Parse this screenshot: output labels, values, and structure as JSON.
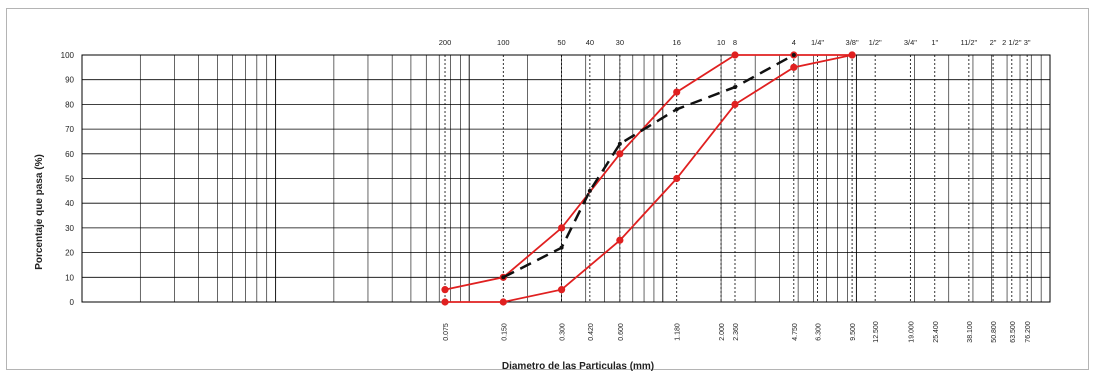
{
  "chart_data": {
    "type": "line",
    "title": "",
    "xlabel": "Diametro de las Particulas (mm)",
    "ylabel": "Porcentaje que pasa (%)",
    "x_scale": "log",
    "xlim": [
      0.001,
      100
    ],
    "ylim": [
      0,
      100
    ],
    "yticks": [
      0,
      10,
      20,
      30,
      40,
      50,
      60,
      70,
      80,
      90,
      100
    ],
    "grid": true,
    "sieves": [
      {
        "name": "200",
        "size": 0.075,
        "size_label": "0.075"
      },
      {
        "name": "100",
        "size": 0.15,
        "size_label": "0.150"
      },
      {
        "name": "50",
        "size": 0.3,
        "size_label": "0.300"
      },
      {
        "name": "40",
        "size": 0.42,
        "size_label": "0.420"
      },
      {
        "name": "30",
        "size": 0.6,
        "size_label": "0.600"
      },
      {
        "name": "16",
        "size": 1.18,
        "size_label": "1.180"
      },
      {
        "name": "10",
        "size": 2.0,
        "size_label": "2.000"
      },
      {
        "name": "8",
        "size": 2.36,
        "size_label": "2.360"
      },
      {
        "name": "4",
        "size": 4.75,
        "size_label": "4.750"
      },
      {
        "name": "1/4\"",
        "size": 6.3,
        "size_label": "6.300"
      },
      {
        "name": "3/8\"",
        "size": 9.5,
        "size_label": "9.500"
      },
      {
        "name": "1/2\"",
        "size": 12.5,
        "size_label": "12.500"
      },
      {
        "name": "3/4\"",
        "size": 19.0,
        "size_label": "19.000"
      },
      {
        "name": "1\"",
        "size": 25.4,
        "size_label": "25.400"
      },
      {
        "name": "11/2\"",
        "size": 38.1,
        "size_label": "38.100"
      },
      {
        "name": "2\"",
        "size": 50.8,
        "size_label": "50.800"
      },
      {
        "name": "2 1/2\"",
        "size": 63.5,
        "size_label": "63.500"
      },
      {
        "name": "3\"",
        "size": 76.2,
        "size_label": "76.200"
      }
    ],
    "series": [
      {
        "style": "upper-limit",
        "color": "#e02020",
        "points": [
          [
            0.075,
            5
          ],
          [
            0.15,
            10
          ],
          [
            0.3,
            30
          ],
          [
            0.6,
            60
          ],
          [
            1.18,
            85
          ],
          [
            2.36,
            100
          ],
          [
            4.75,
            100
          ],
          [
            9.5,
            100
          ]
        ]
      },
      {
        "style": "lower-limit",
        "color": "#e02020",
        "points": [
          [
            0.075,
            0
          ],
          [
            0.15,
            0
          ],
          [
            0.3,
            5
          ],
          [
            0.6,
            25
          ],
          [
            1.18,
            50
          ],
          [
            2.36,
            80
          ],
          [
            4.75,
            95
          ],
          [
            9.5,
            100
          ]
        ]
      },
      {
        "style": "dashed",
        "color": "#111111",
        "points": [
          [
            0.15,
            10
          ],
          [
            0.3,
            22
          ],
          [
            0.42,
            45
          ],
          [
            0.6,
            64
          ],
          [
            1.18,
            78
          ],
          [
            2.36,
            87
          ],
          [
            4.75,
            100
          ]
        ]
      }
    ]
  }
}
